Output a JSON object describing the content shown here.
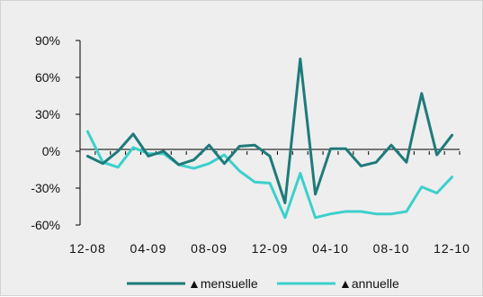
{
  "chart_data": {
    "type": "line",
    "title": "",
    "xlabel": "",
    "ylabel": "",
    "x": [
      "12-08",
      "01-09",
      "02-09",
      "03-09",
      "04-09",
      "05-09",
      "06-09",
      "07-09",
      "08-09",
      "09-09",
      "10-09",
      "11-09",
      "12-09",
      "01-10",
      "02-10",
      "03-10",
      "04-10",
      "05-10",
      "06-10",
      "07-10",
      "08-10",
      "09-10",
      "10-10",
      "11-10",
      "12-10"
    ],
    "x_tick_labels": [
      "12-08",
      "04-09",
      "08-09",
      "12-09",
      "04-10",
      "08-10",
      "12-10"
    ],
    "y_ticks": [
      90,
      60,
      30,
      0,
      -30,
      -60
    ],
    "y_tick_labels": [
      "90%",
      "60%",
      "30%",
      "0%",
      "-30%",
      "-60%"
    ],
    "ylim": [
      -60,
      90
    ],
    "grid": false,
    "legend_position": "bottom",
    "series": [
      {
        "name": "▲mensuelle",
        "color": "#1f7a7a",
        "values": [
          -4,
          -10,
          0,
          14,
          -4,
          0,
          -11,
          -7,
          5,
          -10,
          4,
          5,
          -4,
          -42,
          75,
          -35,
          2,
          2,
          -12,
          -9,
          5,
          -9,
          47,
          -3,
          13
        ]
      },
      {
        "name": "▲annuelle",
        "color": "#3cd0cc",
        "values": [
          16,
          -9,
          -13,
          3,
          -2,
          -2,
          -11,
          -14,
          -10,
          -3,
          -16,
          -25,
          -26,
          -54,
          -18,
          -54,
          -51,
          -49,
          -49,
          -51,
          -51,
          -49,
          -29,
          -34,
          -21
        ]
      }
    ]
  }
}
